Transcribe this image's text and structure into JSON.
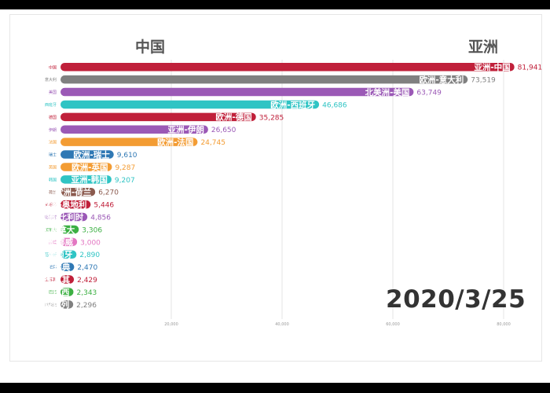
{
  "header": {
    "left": "中国",
    "right": "亚洲"
  },
  "date": "2020/3/25",
  "chart_data": {
    "type": "bar",
    "orientation": "horizontal",
    "xlim": [
      0,
      85000
    ],
    "xticks": [
      20000,
      40000,
      60000,
      80000
    ],
    "xtick_labels": [
      "20,000",
      "40,000",
      "60,000",
      "80,000"
    ],
    "grid": true,
    "categories": [
      "中国",
      "意大利",
      "美国",
      "西班牙",
      "德国",
      "伊朗",
      "法国",
      "瑞士",
      "英国",
      "韩国",
      "荷兰",
      "奥地利",
      "比利时",
      "加拿大",
      "挪威",
      "葡萄牙",
      "瑞典",
      "土耳其",
      "巴西",
      "以色列"
    ],
    "bar_labels": [
      "亚洲-中国",
      "欧洲-意大利",
      "北美洲-美国",
      "欧洲-西班牙",
      "欧洲-德国",
      "亚洲-伊朗",
      "欧洲-法国",
      "欧洲-瑞士",
      "欧洲-英国",
      "亚洲-韩国",
      "欧洲-荷兰",
      "欧洲-奥地利",
      "欧洲-比利时",
      "北美洲-加拿大",
      "欧洲-挪威",
      "欧洲-葡萄牙",
      "欧洲-瑞典",
      "亚洲-土耳其",
      "南美洲-巴西",
      "亚洲-以色列"
    ],
    "values": [
      81941,
      73519,
      63749,
      46686,
      35285,
      26650,
      24745,
      9610,
      9287,
      9207,
      6270,
      5446,
      4856,
      3306,
      3000,
      2890,
      2470,
      2429,
      2343,
      2296
    ],
    "value_labels": [
      "81,941",
      "73,519",
      "63,749",
      "46,686",
      "35,285",
      "26,650",
      "24,745",
      "9,610",
      "9,287",
      "9,207",
      "6,270",
      "5,446",
      "4,856",
      "3,306",
      "3,000",
      "2,890",
      "2,470",
      "2,429",
      "2,343",
      "2,296"
    ],
    "colors": [
      "#c0203a",
      "#808080",
      "#9b59b6",
      "#2fc4c4",
      "#c0203a",
      "#9b59b6",
      "#f39c33",
      "#2f78b4",
      "#f39c33",
      "#2fc4c4",
      "#8b5a4e",
      "#c0203a",
      "#9b59b6",
      "#3cb043",
      "#e377c2",
      "#2fc4c4",
      "#2f78b4",
      "#c0203a",
      "#3cb043",
      "#808080"
    ]
  }
}
